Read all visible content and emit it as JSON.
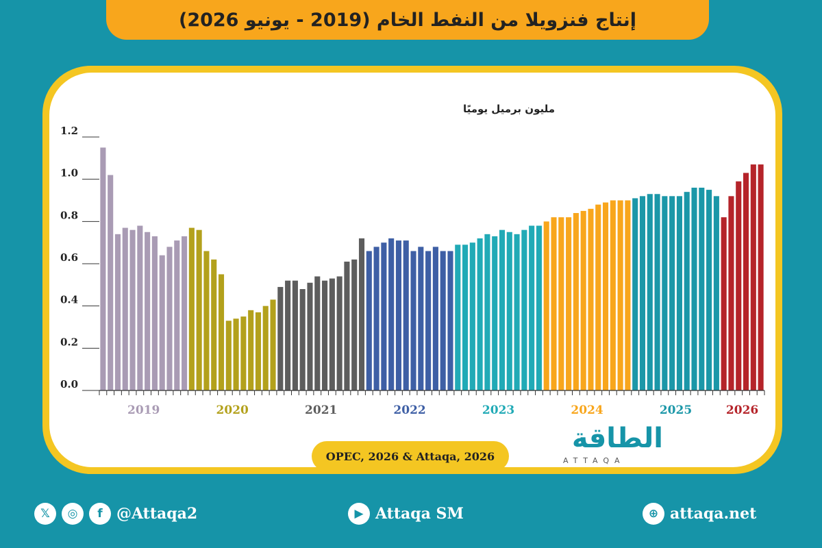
{
  "header": {
    "title": "إنتاج فنزويلا من النفط الخام (2019 - يونيو 2026)"
  },
  "source": {
    "text": "OPEC, 2026 & Attaqa, 2026"
  },
  "logo": {
    "arabic": "الطاقة",
    "latin": "ATTAQA"
  },
  "footer": {
    "social_handle": "@Attaqa2",
    "youtube": "Attaqa SM",
    "website": "attaqa.net",
    "icons": [
      "x-icon",
      "instagram-icon",
      "facebook-icon",
      "youtube-icon",
      "globe-icon"
    ]
  },
  "chart_data": {
    "type": "bar",
    "ylabel": "مليون برميل يوميًا",
    "ylim": [
      0,
      1.2
    ],
    "yticks": [
      0.0,
      0.2,
      0.4,
      0.6,
      0.8,
      1.0,
      1.2
    ],
    "grid": false,
    "series": [
      {
        "year": "2019",
        "color": "#a99bb4",
        "values": [
          1.15,
          1.02,
          0.74,
          0.77,
          0.76,
          0.78,
          0.75,
          0.73,
          0.64,
          0.68,
          0.71,
          0.73
        ]
      },
      {
        "year": "2020",
        "color": "#b3a11c",
        "values": [
          0.77,
          0.76,
          0.66,
          0.62,
          0.55,
          0.33,
          0.34,
          0.35,
          0.38,
          0.37,
          0.4,
          0.43
        ]
      },
      {
        "year": "2021",
        "color": "#5d5d5d",
        "values": [
          0.49,
          0.52,
          0.52,
          0.48,
          0.51,
          0.54,
          0.52,
          0.53,
          0.54,
          0.61,
          0.62,
          0.72
        ]
      },
      {
        "year": "2022",
        "color": "#3e5fa5",
        "values": [
          0.66,
          0.68,
          0.7,
          0.72,
          0.71,
          0.71,
          0.66,
          0.68,
          0.66,
          0.68,
          0.66,
          0.66
        ]
      },
      {
        "year": "2023",
        "color": "#21aab6",
        "values": [
          0.69,
          0.69,
          0.7,
          0.72,
          0.74,
          0.73,
          0.76,
          0.75,
          0.74,
          0.76,
          0.78,
          0.78
        ]
      },
      {
        "year": "2024",
        "color": "#f8a61c",
        "values": [
          0.8,
          0.82,
          0.82,
          0.82,
          0.84,
          0.85,
          0.86,
          0.88,
          0.89,
          0.9,
          0.9,
          0.9
        ]
      },
      {
        "year": "2025",
        "color": "#1b97a8",
        "values": [
          0.91,
          0.92,
          0.93,
          0.93,
          0.92,
          0.92,
          0.92,
          0.94,
          0.96,
          0.96,
          0.95,
          0.92
        ]
      },
      {
        "year": "2026",
        "color": "#b5242a",
        "values": [
          0.82,
          0.92,
          0.99,
          1.03,
          1.07,
          1.07
        ]
      }
    ]
  }
}
